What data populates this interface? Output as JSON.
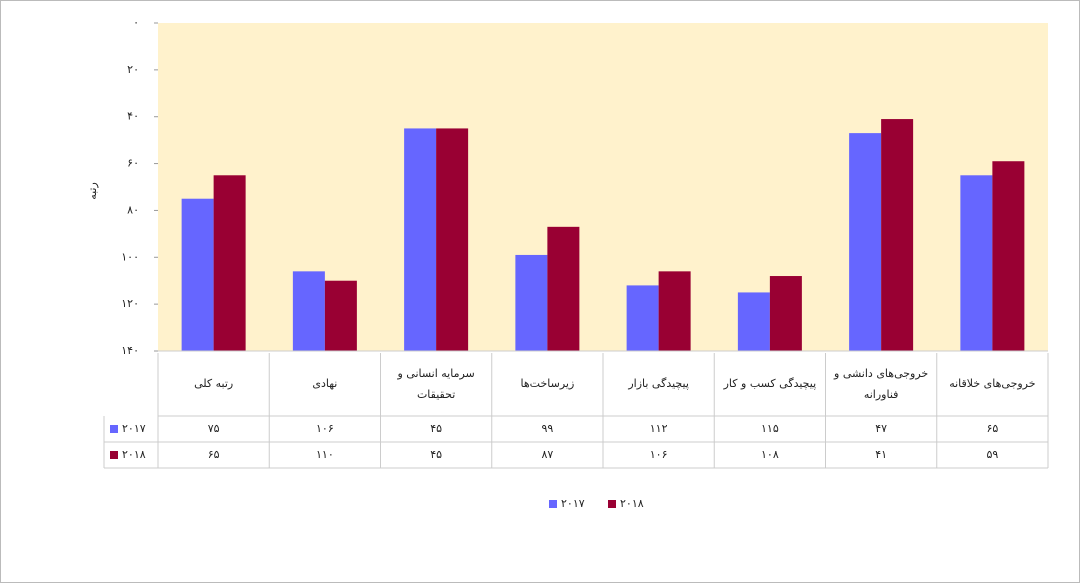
{
  "chart_data": {
    "type": "bar",
    "y_label": "رتبه",
    "categories": [
      "رتبه کلی",
      "نهادی",
      "سرمایه انسانی و تحقیقات",
      "زیرساخت‌ها",
      "پیچیدگی بازار",
      "پیچیدگی کسب و کار",
      "خروجی‌های دانشی و فناورانه",
      "خروجی‌های خلاقانه"
    ],
    "series": [
      {
        "name": "۲۰۱۷",
        "color": "#6666ff",
        "values": [
          75,
          106,
          45,
          99,
          112,
          115,
          47,
          65
        ],
        "value_labels": [
          "۷۵",
          "۱۰۶",
          "۴۵",
          "۹۹",
          "۱۱۲",
          "۱۱۵",
          "۴۷",
          "۶۵"
        ]
      },
      {
        "name": "۲۰۱۸",
        "color": "#990033",
        "values": [
          65,
          110,
          45,
          87,
          106,
          108,
          41,
          59
        ],
        "value_labels": [
          "۶۵",
          "۱۱۰",
          "۴۵",
          "۸۷",
          "۱۰۶",
          "۱۰۸",
          "۴۱",
          "۵۹"
        ]
      }
    ],
    "ylim": [
      0,
      140
    ],
    "y_reversed": true,
    "yticks": [
      {
        "value": 0,
        "label": "۰"
      },
      {
        "value": 20,
        "label": "۲۰"
      },
      {
        "value": 40,
        "label": "۴۰"
      },
      {
        "value": 60,
        "label": "۶۰"
      },
      {
        "value": 80,
        "label": "۸۰"
      },
      {
        "value": 100,
        "label": "۱۰۰"
      },
      {
        "value": 120,
        "label": "۱۲۰"
      },
      {
        "value": 140,
        "label": "۱۴۰"
      }
    ],
    "plot_background": "#fff2cc",
    "grid": false,
    "legend": "bottom"
  }
}
